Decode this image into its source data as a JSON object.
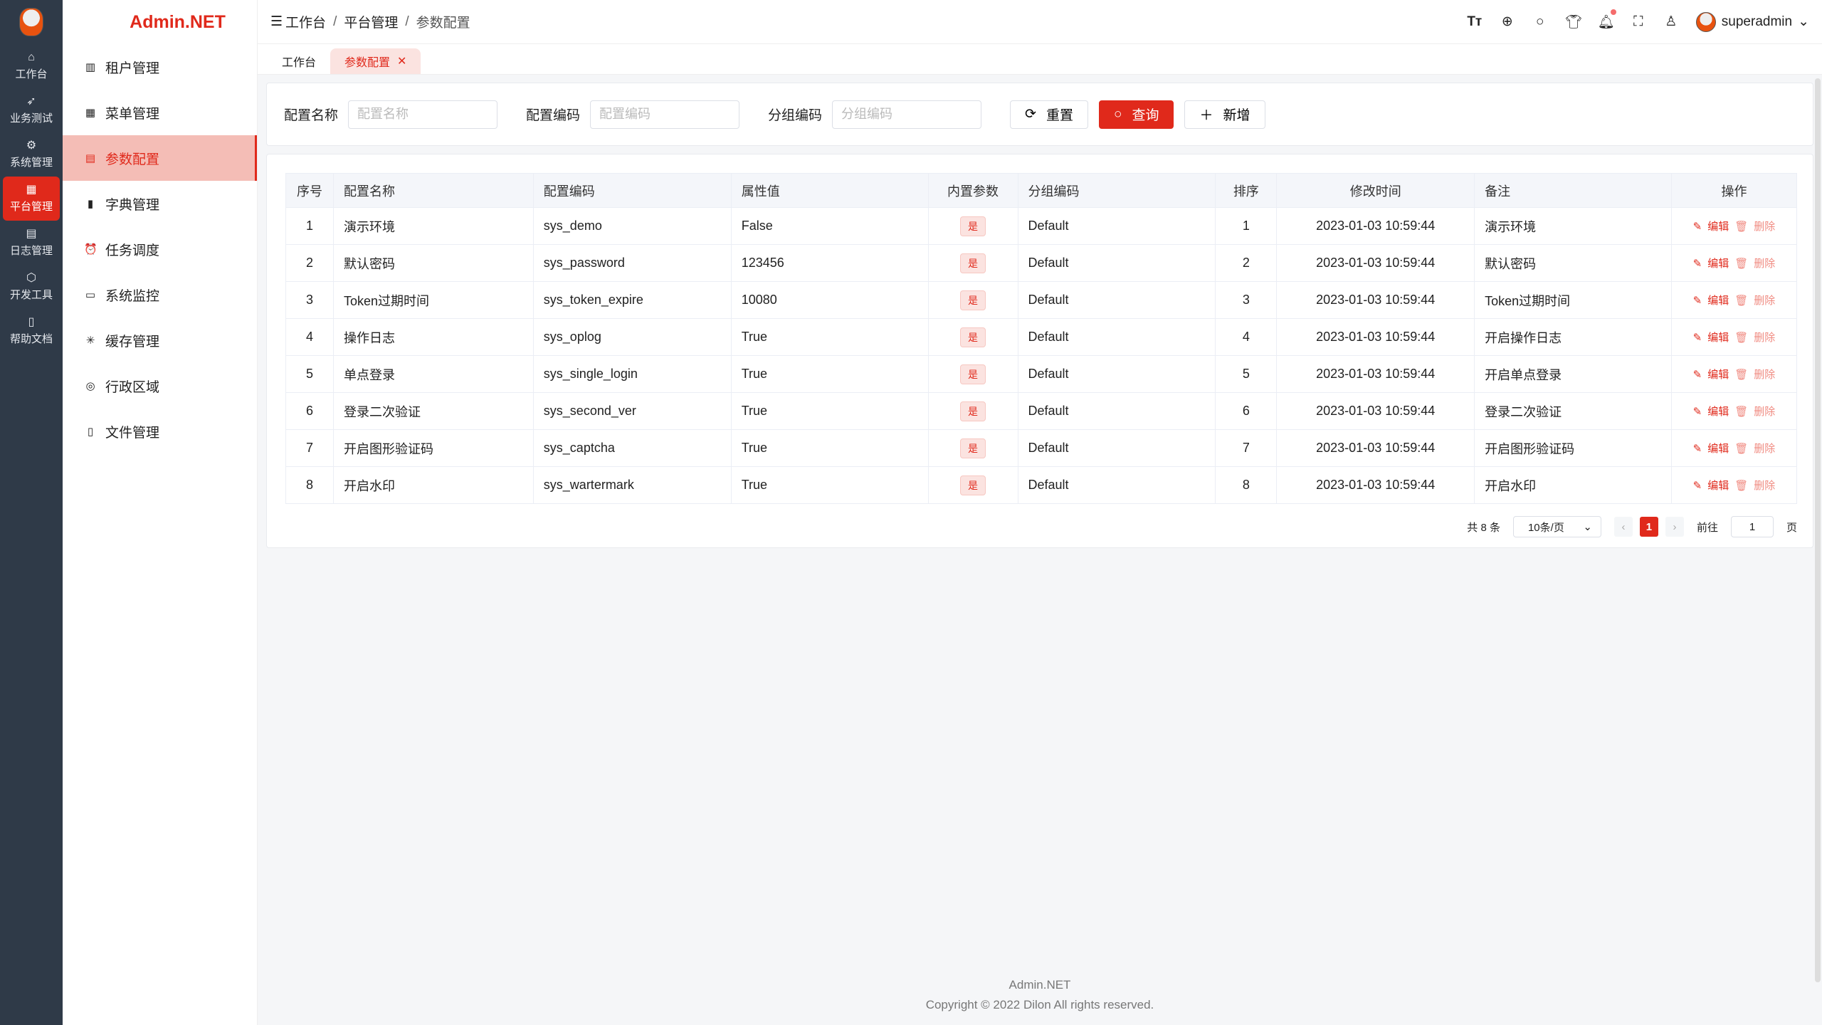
{
  "brand": "Admin.NET",
  "rail": [
    {
      "icon": "home-icon",
      "g": "⌂",
      "label": "工作台"
    },
    {
      "icon": "send-icon",
      "g": "➶",
      "label": "业务测试"
    },
    {
      "icon": "gear-icon",
      "g": "⚙",
      "label": "系统管理"
    },
    {
      "icon": "grid-icon",
      "g": "▦",
      "label": "平台管理",
      "active": true
    },
    {
      "icon": "log-icon",
      "g": "▤",
      "label": "日志管理"
    },
    {
      "icon": "chip-icon",
      "g": "⬡",
      "label": "开发工具"
    },
    {
      "icon": "book-icon",
      "g": "▯",
      "label": "帮助文档"
    }
  ],
  "sidebar": [
    {
      "icon": "building-icon",
      "g": "▥",
      "label": "租户管理"
    },
    {
      "icon": "menu-grid-icon",
      "g": "▦",
      "label": "菜单管理"
    },
    {
      "icon": "config-icon",
      "g": "▤",
      "label": "参数配置",
      "active": true
    },
    {
      "icon": "dictionary-icon",
      "g": "▮",
      "label": "字典管理"
    },
    {
      "icon": "alarm-clock-icon",
      "g": "⏰",
      "label": "任务调度"
    },
    {
      "icon": "monitor-icon",
      "g": "▭",
      "label": "系统监控"
    },
    {
      "icon": "loading-icon",
      "g": "✳",
      "label": "缓存管理"
    },
    {
      "icon": "location-icon",
      "g": "◎",
      "label": "行政区域"
    },
    {
      "icon": "document-icon",
      "g": "▯",
      "label": "文件管理"
    }
  ],
  "breadcrumb": [
    "工作台",
    "平台管理",
    "参数配置"
  ],
  "user": "superadmin",
  "tabs": [
    {
      "label": "工作台"
    },
    {
      "label": "参数配置",
      "active": true
    }
  ],
  "search": {
    "fields": [
      {
        "label": "配置名称",
        "placeholder": "配置名称"
      },
      {
        "label": "配置编码",
        "placeholder": "配置编码"
      },
      {
        "label": "分组编码",
        "placeholder": "分组编码"
      }
    ],
    "reset": "重置",
    "query": "查询",
    "add": "新增"
  },
  "table": {
    "columns": [
      "序号",
      "配置名称",
      "配置编码",
      "属性值",
      "内置参数",
      "分组编码",
      "排序",
      "修改时间",
      "备注",
      "操作"
    ],
    "rows": [
      [
        "1",
        "演示环境",
        "sys_demo",
        "False",
        "是",
        "Default",
        "1",
        "2023-01-03 10:59:44",
        "演示环境"
      ],
      [
        "2",
        "默认密码",
        "sys_password",
        "123456",
        "是",
        "Default",
        "2",
        "2023-01-03 10:59:44",
        "默认密码"
      ],
      [
        "3",
        "Token过期时间",
        "sys_token_expire",
        "10080",
        "是",
        "Default",
        "3",
        "2023-01-03 10:59:44",
        "Token过期时间"
      ],
      [
        "4",
        "操作日志",
        "sys_oplog",
        "True",
        "是",
        "Default",
        "4",
        "2023-01-03 10:59:44",
        "开启操作日志"
      ],
      [
        "5",
        "单点登录",
        "sys_single_login",
        "True",
        "是",
        "Default",
        "5",
        "2023-01-03 10:59:44",
        "开启单点登录"
      ],
      [
        "6",
        "登录二次验证",
        "sys_second_ver",
        "True",
        "是",
        "Default",
        "6",
        "2023-01-03 10:59:44",
        "登录二次验证"
      ],
      [
        "7",
        "开启图形验证码",
        "sys_captcha",
        "True",
        "是",
        "Default",
        "7",
        "2023-01-03 10:59:44",
        "开启图形验证码"
      ],
      [
        "8",
        "开启水印",
        "sys_wartermark",
        "True",
        "是",
        "Default",
        "8",
        "2023-01-03 10:59:44",
        "开启水印"
      ]
    ],
    "edit": "编辑",
    "delete": "删除"
  },
  "pagination": {
    "total": "共 8 条",
    "page_size": "10条/页",
    "current": "1",
    "goto": "前往",
    "goto_value": "1",
    "page_unit": "页"
  },
  "footer": {
    "name": "Admin.NET",
    "copyright": "Copyright © 2022 Dilon All rights reserved."
  },
  "colors": {
    "accent": "#e0291b",
    "rail": "#2f3a48"
  }
}
